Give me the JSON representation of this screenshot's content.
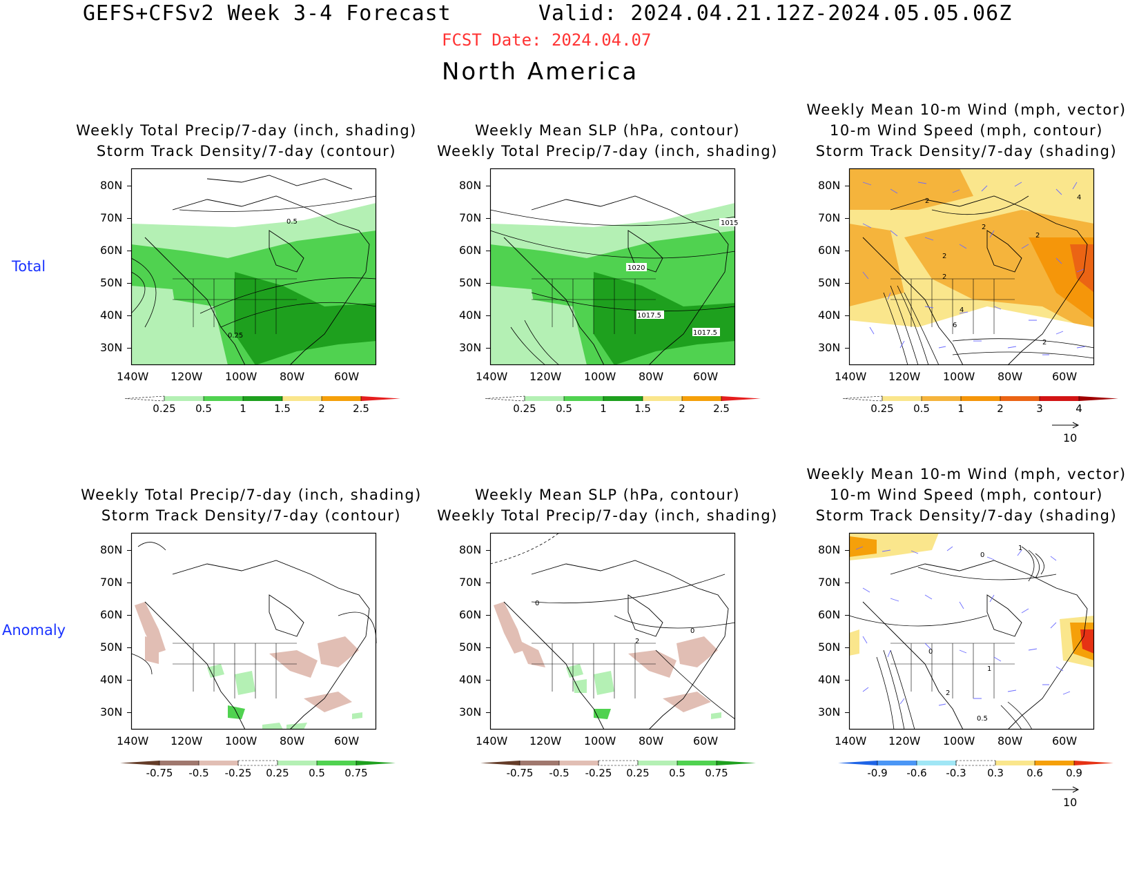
{
  "header": {
    "title": "GEFS+CFSv2 Week 3-4 Forecast",
    "valid": "Valid: 2024.04.21.12Z-2024.05.05.06Z",
    "fcst_date": "FCST Date: 2024.04.07",
    "region": "North America",
    "fcst_color": "#ff3333"
  },
  "rows": [
    {
      "label": "Total"
    },
    {
      "label": "Anomaly"
    }
  ],
  "panel_titles": {
    "precip": [
      "Weekly Total Precip/7-day (inch, shading)",
      "Storm Track Density/7-day (contour)"
    ],
    "slp": [
      "Weekly Mean SLP (hPa, contour)",
      "Weekly Total Precip/7-day (inch, shading)"
    ],
    "wind": [
      "Weekly Mean 10-m Wind (mph, vector)",
      "10-m Wind Speed (mph, contour)",
      "Storm Track Density/7-day (shading)"
    ]
  },
  "axes": {
    "lat_labels": [
      "80N",
      "70N",
      "60N",
      "50N",
      "40N",
      "30N"
    ],
    "lon_labels": [
      "140W",
      "120W",
      "100W",
      "80W",
      "60W"
    ]
  },
  "map_labels": {
    "total_precip": [
      "0.5",
      "0.25"
    ],
    "total_slp": [
      "1015",
      "1020",
      "1017.5",
      "1017.5"
    ],
    "total_wind": [
      "2",
      "2",
      "2",
      "2",
      "4",
      "6",
      "2",
      "4",
      "2"
    ],
    "anom_slp": [
      "0",
      "0",
      "2"
    ],
    "anom_wind": [
      "0",
      "1",
      "0",
      "1",
      "2",
      "0.5"
    ]
  },
  "colorbars": {
    "total_precip": {
      "labels": [
        "0.25",
        "0.5",
        "1",
        "1.5",
        "2",
        "2.5"
      ],
      "colors": [
        "#ffffff",
        "#b4f0b4",
        "#50d250",
        "#1ea01e",
        "#fae68c",
        "#f5a00a",
        "#e61e1e"
      ]
    },
    "total_storm": {
      "labels": [
        "0.25",
        "0.5",
        "1",
        "2",
        "3",
        "4"
      ],
      "colors": [
        "#ffffff",
        "#fae68c",
        "#f5b43c",
        "#f5960a",
        "#eb6414",
        "#d21414",
        "#a00000"
      ]
    },
    "anom_precip": {
      "labels": [
        "-0.75",
        "-0.5",
        "-0.25",
        "0.25",
        "0.5",
        "0.75"
      ],
      "colors": [
        "#643c28",
        "#a0786e",
        "#e1beb4",
        "#ffffff",
        "#b4f0b4",
        "#50d250",
        "#1ea01e"
      ]
    },
    "anom_storm": {
      "labels": [
        "-0.9",
        "-0.6",
        "-0.3",
        "0.3",
        "0.6",
        "0.9"
      ],
      "colors": [
        "#1e64e6",
        "#4b96f5",
        "#a0e6f5",
        "#ffffff",
        "#fae68c",
        "#f5a00a",
        "#e63214"
      ]
    }
  },
  "vector_ref": {
    "label": "10"
  }
}
